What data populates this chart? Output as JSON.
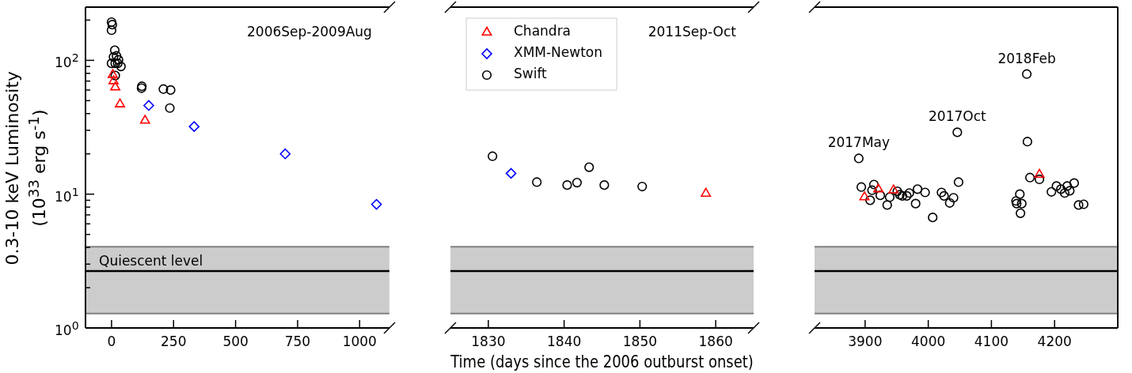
{
  "chart_data": [
    {
      "type": "scatter",
      "ylabel": "0.3-10 keV Luminosity\n(10$^{33}$ erg s$^{-1}$)",
      "log": "y",
      "xlim": [
        -105,
        1120
      ],
      "xticks": [
        0,
        250,
        500,
        750,
        1000
      ],
      "ylim": [
        1,
        250
      ],
      "yticks": [
        {
          "value": 1,
          "label": "10$^{0}$"
        },
        {
          "value": 2,
          "label": null
        },
        {
          "value": 3,
          "label": null
        },
        {
          "value": 4,
          "label": null
        },
        {
          "value": 5,
          "label": null
        },
        {
          "value": 6,
          "label": null
        },
        {
          "value": 7,
          "label": null
        },
        {
          "value": 8,
          "label": null
        },
        {
          "value": 9,
          "label": null
        },
        {
          "value": 10,
          "label": "10$^{1}$"
        },
        {
          "value": 20,
          "label": null
        },
        {
          "value": 30,
          "label": null
        },
        {
          "value": 40,
          "label": null
        },
        {
          "value": 50,
          "label": null
        },
        {
          "value": 60,
          "label": null
        },
        {
          "value": 70,
          "label": null
        },
        {
          "value": 80,
          "label": null
        },
        {
          "value": 90,
          "label": null
        },
        {
          "value": 100,
          "label": "10$^{2}$"
        },
        {
          "value": 200,
          "label": null
        }
      ],
      "bands": [
        {
          "axis": "y",
          "from": 1.28,
          "to": 4.05,
          "color": "#cccccc"
        }
      ],
      "ref_lines": [
        {
          "axis": "y",
          "value": 2.66,
          "label": "Quiescent level",
          "color": "#000000"
        }
      ],
      "annotations": [
        "2006Sep-2009Aug"
      ],
      "series": [
        {
          "color": "#ff0000",
          "marker": "triangle",
          "x": [
            5,
            8,
            15,
            34,
            135
          ],
          "values": [
            78,
            70,
            63,
            47,
            35.5
          ]
        },
        {
          "color": "#0000ff",
          "marker": "diamond",
          "x": [
            150,
            333,
            700,
            1068
          ],
          "values": [
            46,
            32,
            20,
            8.4
          ]
        },
        {
          "color": "#000000",
          "marker": "circle",
          "x": [
            0,
            3,
            0,
            13,
            8,
            20,
            28,
            0,
            15,
            25,
            38,
            15,
            122,
            121,
            209,
            238,
            235
          ],
          "values": [
            193,
            185,
            168,
            119,
            106,
            108,
            101,
            95,
            95,
            95,
            90,
            77,
            64,
            62,
            61,
            60,
            44
          ]
        }
      ]
    },
    {
      "type": "scatter",
      "xlabel": "Time (days since the 2006 outburst onset)",
      "log": "y",
      "xlim": [
        1825,
        1865
      ],
      "xticks": [
        1830,
        1840,
        1850,
        1860
      ],
      "ylim": [
        1,
        250
      ],
      "yticks": [
        {
          "value": 1,
          "label": null
        },
        {
          "value": 10,
          "label": null
        },
        {
          "value": 100,
          "label": null
        }
      ],
      "tick_labels": "x",
      "legend": "top left",
      "bands": [
        {
          "axis": "y",
          "from": 1.28,
          "to": 4.05,
          "color": "#cccccc"
        }
      ],
      "ref_lines": [
        {
          "axis": "y",
          "value": 2.66,
          "color": "#000000"
        }
      ],
      "annotations": [
        "2011Sep-Oct"
      ],
      "series": [
        {
          "name": "Chandra",
          "color": "#ff0000",
          "marker": "triangle",
          "x": [
            1858.7
          ],
          "values": [
            10.1
          ]
        },
        {
          "name": "XMM-Newton",
          "color": "#0000ff",
          "marker": "diamond",
          "x": [
            1833.0
          ],
          "values": [
            14.3
          ]
        },
        {
          "name": "Swift",
          "color": "#000000",
          "marker": "circle",
          "x": [
            1830.55,
            1836.4,
            1840.4,
            1841.7,
            1843.3,
            1845.3,
            1850.3
          ],
          "values": [
            19.2,
            12.3,
            11.7,
            12.2,
            15.9,
            11.7,
            11.4
          ]
        }
      ]
    },
    {
      "type": "scatter",
      "log": "y",
      "xlim": [
        3820,
        4300
      ],
      "xticks": [
        3900,
        4000,
        4100,
        4200
      ],
      "ylim": [
        1,
        250
      ],
      "yticks": [
        {
          "value": 1,
          "label": null
        },
        {
          "value": 10,
          "label": null
        },
        {
          "value": 100,
          "label": null
        }
      ],
      "tick_labels": "x",
      "bands": [
        {
          "axis": "y",
          "from": 1.28,
          "to": 4.05,
          "color": "#cccccc"
        }
      ],
      "ref_lines": [
        {
          "axis": "y",
          "value": 2.66,
          "color": "#000000"
        }
      ],
      "annotations": [
        {
          "text": "2017May",
          "x": 3890,
          "y": 18.5
        },
        {
          "text": "2017Oct",
          "x": 4046,
          "y": 29
        },
        {
          "text": "2018Feb",
          "x": 4156,
          "y": 79
        }
      ],
      "series": [
        {
          "color": "#ff0000",
          "marker": "triangle",
          "x": [
            3899,
            3921,
            3945,
            4176
          ],
          "values": [
            9.5,
            10.9,
            10.7,
            14.0
          ]
        },
        {
          "color": "#000000",
          "marker": "circle",
          "x": [
            3890,
            3894,
            3908,
            3911,
            3914,
            3924,
            3935,
            3939,
            3951,
            3955,
            3959,
            3966,
            3970,
            3980,
            3983,
            3995,
            4007,
            4021,
            4025,
            4034,
            4040,
            4046,
            4048,
            4139,
            4140,
            4145,
            4148,
            4146,
            4156,
            4157,
            4161,
            4176,
            4195,
            4203,
            4210,
            4216,
            4220,
            4224,
            4231,
            4238,
            4246
          ],
          "values": [
            18.5,
            11.3,
            9.0,
            10.7,
            11.8,
            9.8,
            8.3,
            9.5,
            10.5,
            9.9,
            9.7,
            9.7,
            10.2,
            8.5,
            10.9,
            10.3,
            6.7,
            10.3,
            9.7,
            8.6,
            9.4,
            29,
            12.3,
            8.9,
            8.5,
            10.0,
            8.5,
            7.2,
            79,
            24.7,
            13.3,
            12.9,
            10.4,
            11.5,
            10.9,
            10.2,
            11.5,
            10.6,
            12.1,
            8.3,
            8.4
          ]
        }
      ]
    }
  ]
}
